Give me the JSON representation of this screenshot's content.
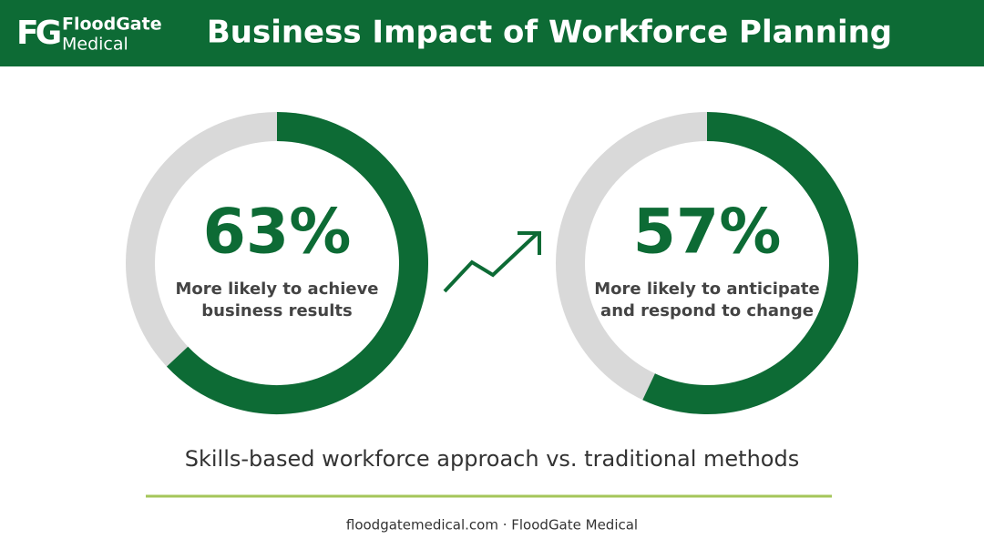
{
  "header": {
    "logo_mark": "FG",
    "logo_line1": "FloodGate",
    "logo_line2": "Medical",
    "title": "Business Impact of Workforce Planning"
  },
  "chart_data": [
    {
      "type": "donut",
      "values": [
        63
      ],
      "value_labels": [
        "63%"
      ],
      "ylim": [
        0,
        100
      ],
      "caption": [
        "More likely to achieve",
        "business results"
      ],
      "color": "#0d6b35",
      "track_color": "#d9d9d9"
    },
    {
      "type": "donut",
      "values": [
        57
      ],
      "value_labels": [
        "57%"
      ],
      "ylim": [
        0,
        100
      ],
      "caption": [
        "More likely to anticipate",
        "and respond to change"
      ],
      "color": "#0d6b35",
      "track_color": "#d9d9d9"
    }
  ],
  "subtitle": "Skills-based workforce approach vs. traditional methods",
  "footer": "floodgatemedical.com · FloodGate Medical"
}
